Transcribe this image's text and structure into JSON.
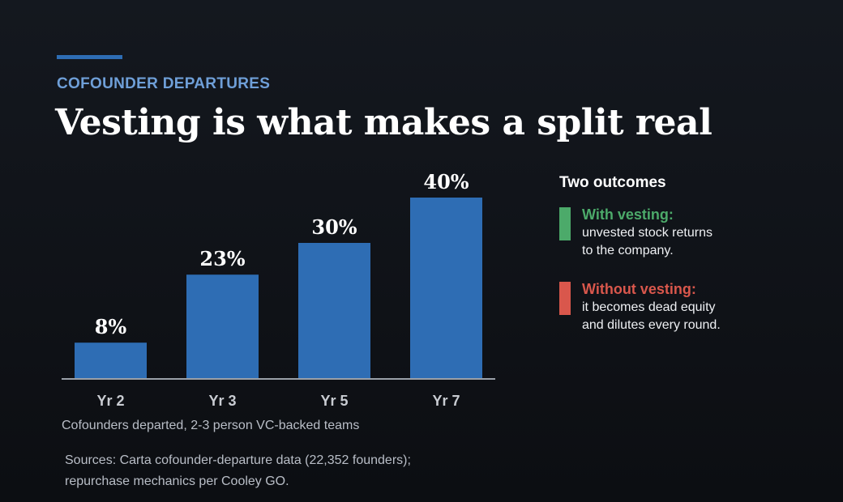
{
  "header": {
    "eyebrow": "COFOUNDER DEPARTURES",
    "title": "Vesting is what makes a split real"
  },
  "colors": {
    "accent": "#2e6db4",
    "bar": "#2e6db4",
    "eyebrow": "#6f9fd8",
    "with_vesting": "#4caa6a",
    "without_vesting": "#d9574c"
  },
  "chart_data": {
    "type": "bar",
    "categories": [
      "Yr 2",
      "Yr 3",
      "Yr 5",
      "Yr 7"
    ],
    "values": [
      8,
      23,
      30,
      40
    ],
    "value_labels": [
      "8%",
      "23%",
      "30%",
      "40%"
    ],
    "ylim": [
      0,
      40
    ],
    "grid": false,
    "caption": "Cofounders departed, 2-3 person VC-backed teams"
  },
  "legend": {
    "title": "Two outcomes",
    "items": [
      {
        "heading": "With vesting:",
        "lines": [
          "unvested stock returns",
          "to the company."
        ],
        "color": "#4caa6a"
      },
      {
        "heading": "Without vesting:",
        "lines": [
          "it becomes dead equity",
          "and dilutes every round."
        ],
        "color": "#d9574c"
      }
    ]
  },
  "sources": {
    "lines": [
      "Sources: Carta cofounder-departure data (22,352 founders);",
      "repurchase mechanics per Cooley GO."
    ]
  }
}
